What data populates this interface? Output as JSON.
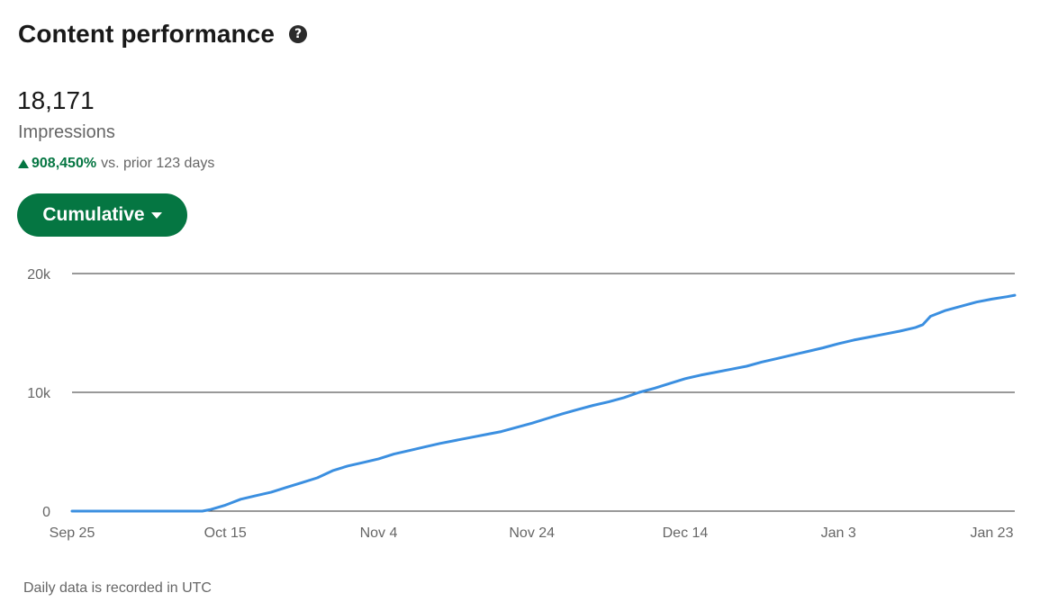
{
  "header": {
    "title": "Content performance",
    "help_icon": "question-circle-icon"
  },
  "metric": {
    "value": "18,171",
    "label": "Impressions",
    "change_percent": "908,450%",
    "change_suffix": "vs. prior 123 days",
    "change_direction": "up"
  },
  "mode_button": {
    "label": "Cumulative",
    "icon": "caret-down-icon"
  },
  "footnote": "Daily data is recorded in UTC",
  "colors": {
    "accent": "#057642",
    "line": "#3b8fe0",
    "gridline": "#333333"
  },
  "chart_data": {
    "type": "line",
    "title": "",
    "xlabel": "",
    "ylabel": "",
    "ylim": [
      0,
      20000
    ],
    "yticks": [
      0,
      10000,
      20000
    ],
    "ytick_labels": [
      "0",
      "10k",
      "20k"
    ],
    "x_start": "Sep 25",
    "x_end": "Jan 23",
    "xtick_days": [
      0,
      20,
      40,
      60,
      80,
      100,
      120
    ],
    "xtick_labels": [
      "Sep 25",
      "Oct 15",
      "Nov 4",
      "Nov 24",
      "Dec 14",
      "Jan 3",
      "Jan 23"
    ],
    "grid": true,
    "series": [
      {
        "values": [
          [
            0,
            0
          ],
          [
            17,
            0
          ],
          [
            18,
            120
          ],
          [
            20,
            500
          ],
          [
            22,
            1000
          ],
          [
            24,
            1300
          ],
          [
            26,
            1600
          ],
          [
            28,
            2000
          ],
          [
            30,
            2400
          ],
          [
            32,
            2800
          ],
          [
            34,
            3400
          ],
          [
            36,
            3800
          ],
          [
            38,
            4100
          ],
          [
            40,
            4400
          ],
          [
            42,
            4800
          ],
          [
            44,
            5100
          ],
          [
            46,
            5400
          ],
          [
            48,
            5700
          ],
          [
            50,
            5950
          ],
          [
            52,
            6200
          ],
          [
            54,
            6450
          ],
          [
            56,
            6700
          ],
          [
            58,
            7050
          ],
          [
            60,
            7400
          ],
          [
            62,
            7800
          ],
          [
            64,
            8200
          ],
          [
            66,
            8550
          ],
          [
            68,
            8900
          ],
          [
            70,
            9200
          ],
          [
            72,
            9550
          ],
          [
            74,
            10000
          ],
          [
            76,
            10350
          ],
          [
            78,
            10750
          ],
          [
            80,
            11150
          ],
          [
            82,
            11450
          ],
          [
            84,
            11700
          ],
          [
            86,
            11950
          ],
          [
            88,
            12200
          ],
          [
            90,
            12550
          ],
          [
            92,
            12850
          ],
          [
            94,
            13150
          ],
          [
            96,
            13450
          ],
          [
            98,
            13750
          ],
          [
            100,
            14100
          ],
          [
            102,
            14400
          ],
          [
            104,
            14650
          ],
          [
            106,
            14900
          ],
          [
            108,
            15150
          ],
          [
            110,
            15450
          ],
          [
            111,
            15700
          ],
          [
            112,
            16400
          ],
          [
            114,
            16900
          ],
          [
            116,
            17250
          ],
          [
            118,
            17600
          ],
          [
            120,
            17850
          ],
          [
            122,
            18050
          ],
          [
            123,
            18171
          ]
        ]
      }
    ]
  }
}
